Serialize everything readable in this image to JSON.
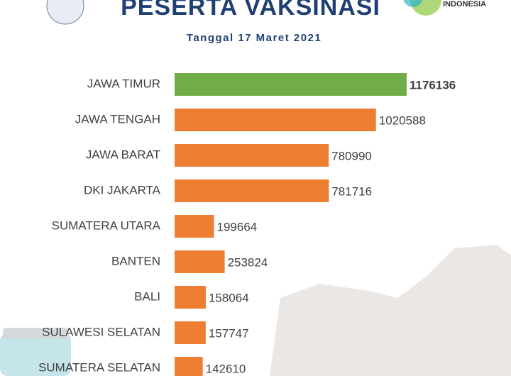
{
  "logo": {
    "text": "INDONESIA"
  },
  "chart_data": {
    "type": "bar",
    "orientation": "horizontal",
    "title": "PESERTA VAKSINASI",
    "subtitle": "Tanggal 17 Maret 2021",
    "categories": [
      "JAWA TIMUR",
      "JAWA TENGAH",
      "JAWA BARAT",
      "DKI JAKARTA",
      "SUMATERA UTARA",
      "BANTEN",
      "BALI",
      "SULAWESI SELATAN",
      "SUMATERA SELATAN"
    ],
    "values": [
      1176136,
      1020588,
      780990,
      781716,
      199664,
      253824,
      158064,
      157747,
      142610
    ],
    "colors": [
      "#70ad47",
      "#ed7d31",
      "#ed7d31",
      "#ed7d31",
      "#ed7d31",
      "#ed7d31",
      "#ed7d31",
      "#ed7d31",
      "#ed7d31"
    ]
  }
}
